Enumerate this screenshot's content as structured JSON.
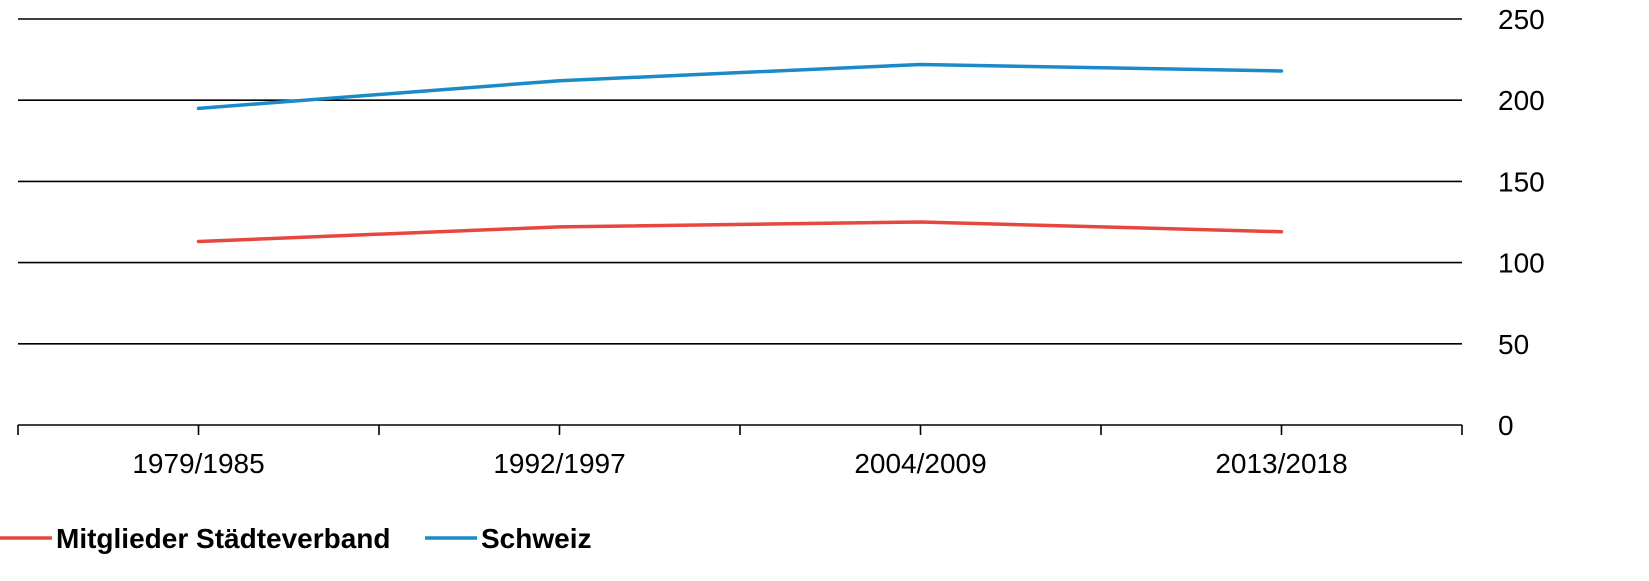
{
  "chart_data": {
    "type": "line",
    "title": "",
    "xlabel": "",
    "ylabel": "",
    "categories": [
      "1979/1985",
      "1992/1997",
      "2004/2009",
      "2013/2018"
    ],
    "ylim": [
      0,
      250
    ],
    "yticks": [
      0,
      50,
      100,
      150,
      200,
      250
    ],
    "y_axis_side": "right",
    "grid": true,
    "legend_position": "bottom-left",
    "series": [
      {
        "name": "Mitglieder Städteverband",
        "color": "#e8473f",
        "values": [
          113,
          122,
          125,
          119
        ]
      },
      {
        "name": "Schweiz",
        "color": "#1a8ac8",
        "values": [
          195,
          212,
          222,
          218
        ]
      }
    ]
  }
}
